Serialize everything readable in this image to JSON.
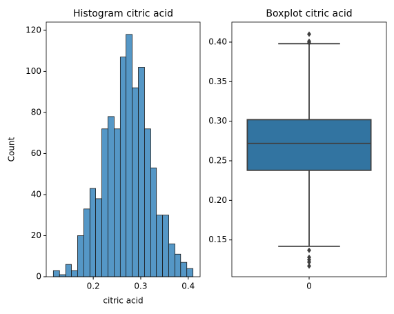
{
  "chart_data": [
    {
      "type": "histogram",
      "title": "Histogram citric acid",
      "x_label": "citric acid",
      "y_label": "Count",
      "bins": [
        0.116,
        0.129,
        0.142,
        0.154,
        0.167,
        0.18,
        0.193,
        0.205,
        0.218,
        0.231,
        0.244,
        0.257,
        0.269,
        0.282,
        0.295,
        0.308,
        0.321,
        0.333,
        0.346,
        0.359,
        0.372,
        0.384,
        0.397,
        0.41
      ],
      "values": [
        3,
        1,
        6,
        3,
        20,
        33,
        43,
        38,
        72,
        78,
        72,
        107,
        118,
        92,
        102,
        72,
        53,
        30,
        30,
        16,
        11,
        7,
        4
      ],
      "color": "#5597c6",
      "edge_color": "#1a1a1a",
      "xlim": [
        0.101,
        0.425
      ],
      "xticks": [
        0.2,
        0.3,
        0.4
      ],
      "ylim": [
        0,
        124
      ],
      "yticks": [
        0,
        20,
        40,
        60,
        80,
        100,
        120
      ]
    },
    {
      "type": "box",
      "title": "Boxplot citric acid",
      "categories": [
        "0"
      ],
      "boxes": [
        {
          "whislo": 0.142,
          "q1": 0.238,
          "median": 0.272,
          "q3": 0.302,
          "whishi": 0.398,
          "fliers": [
            0.41,
            0.401,
            0.399,
            0.137,
            0.128,
            0.125,
            0.122,
            0.117
          ]
        }
      ],
      "color": "#3274a1",
      "edge_color": "#3f3f3f",
      "ylim": [
        0.1035,
        0.4253
      ],
      "yticks": [
        {
          "value": 0.15,
          "label": "0.15"
        },
        {
          "value": 0.2,
          "label": "0.20"
        },
        {
          "value": 0.25,
          "label": "0.25"
        },
        {
          "value": 0.3,
          "label": "0.30"
        },
        {
          "value": 0.35,
          "label": "0.35"
        },
        {
          "value": 0.4,
          "label": "0.40"
        }
      ]
    }
  ]
}
